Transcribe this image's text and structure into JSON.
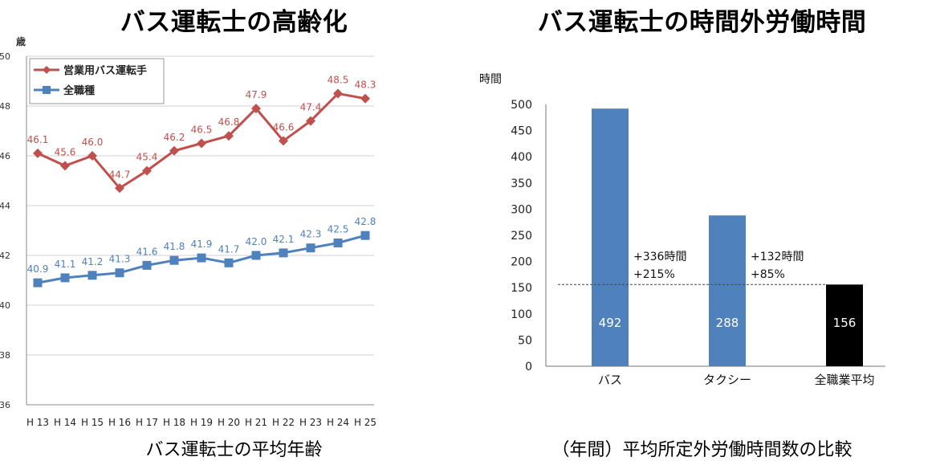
{
  "left": {
    "title": "バス運転士の高齢化",
    "caption": "バス運転士の平均年齢",
    "chart_data": {
      "type": "line",
      "ylabel": "歳",
      "ylim": [
        36,
        50
      ],
      "yticks": [
        36,
        38,
        40,
        42,
        44,
        46,
        48,
        50
      ],
      "categories": [
        "H 13",
        "H 14",
        "H 15",
        "H 16",
        "H 17",
        "H 18",
        "H 19",
        "H 20",
        "H 21",
        "H 22",
        "H 23",
        "H 24",
        "H 25"
      ],
      "legend_position": "top-left",
      "grid": true,
      "series": [
        {
          "name": "営業用バス運転手",
          "color": "#c0504d",
          "marker": "diamond",
          "values": [
            46.1,
            45.6,
            46.0,
            44.7,
            45.4,
            46.2,
            46.5,
            46.8,
            47.9,
            46.6,
            47.4,
            48.5,
            48.3
          ],
          "labels": [
            "46.1",
            "45.6",
            "46.0",
            "44.7",
            "45.4",
            "46.2",
            "46.5",
            "46.8",
            "47.9",
            "46.6",
            "47.4",
            "48.5",
            "48.3"
          ]
        },
        {
          "name": "全職種",
          "color": "#4f81bd",
          "marker": "square",
          "values": [
            40.9,
            41.1,
            41.2,
            41.3,
            41.6,
            41.8,
            41.9,
            41.7,
            42.0,
            42.1,
            42.3,
            42.5,
            42.8
          ],
          "labels": [
            "40.9",
            "41.1",
            "41.2",
            "41.3",
            "41.6",
            "41.8",
            "41.9",
            "41.7",
            "42.0",
            "42.1",
            "42.3",
            "42.5",
            "42.8"
          ]
        }
      ]
    }
  },
  "right": {
    "title": "バス運転士の時間外労働時間",
    "caption": "（年間）平均所定外労働時間数の比較",
    "chart_data": {
      "type": "bar",
      "ylabel": "時間",
      "ylim": [
        0,
        500
      ],
      "yticks": [
        0,
        50,
        100,
        150,
        200,
        250,
        300,
        350,
        400,
        450,
        500
      ],
      "grid": false,
      "reference_value": 156,
      "categories": [
        "バス",
        "タクシー",
        "全職業平均"
      ],
      "values": [
        492,
        288,
        156
      ],
      "value_labels": [
        "492",
        "288",
        "156"
      ],
      "colors": [
        "#4f81bd",
        "#4f81bd",
        "#000000"
      ],
      "annotations": [
        {
          "lines": [
            "+336時間",
            "+215%"
          ]
        },
        {
          "lines": [
            "+132時間",
            "+85%"
          ]
        }
      ]
    }
  }
}
